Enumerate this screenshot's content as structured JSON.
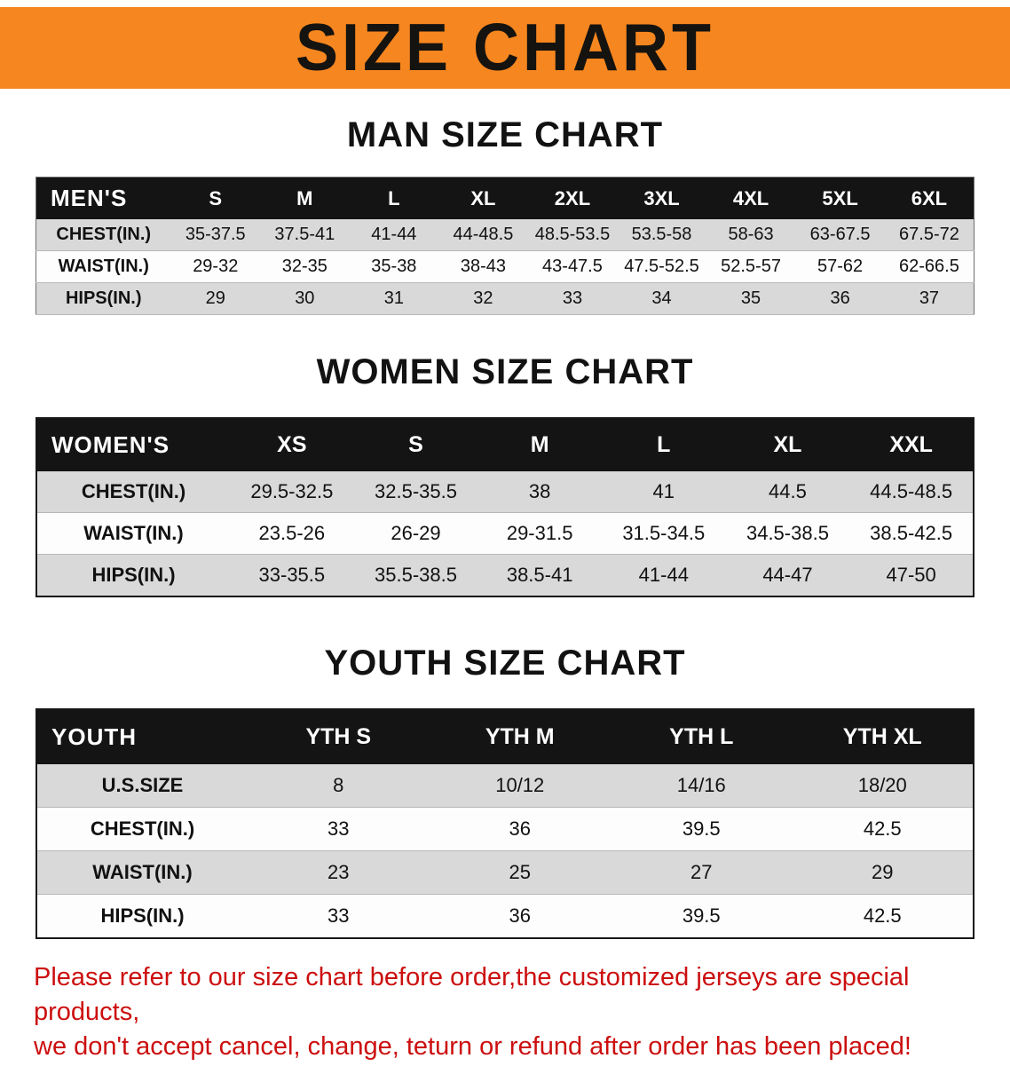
{
  "banner": {
    "title": "SIZE CHART",
    "bg_color": "#f6861f"
  },
  "sections": [
    {
      "id": "men",
      "heading": "MAN SIZE CHART",
      "table": {
        "label": "MEN'S",
        "columns": [
          "S",
          "M",
          "L",
          "XL",
          "2XL",
          "3XL",
          "4XL",
          "5XL",
          "6XL"
        ],
        "rows": [
          {
            "label": "CHEST(IN.)",
            "values": [
              "35-37.5",
              "37.5-41",
              "41-44",
              "44-48.5",
              "48.5-53.5",
              "53.5-58",
              "58-63",
              "63-67.5",
              "67.5-72"
            ]
          },
          {
            "label": "WAIST(IN.)",
            "values": [
              "29-32",
              "32-35",
              "35-38",
              "38-43",
              "43-47.5",
              "47.5-52.5",
              "52.5-57",
              "57-62",
              "62-66.5"
            ]
          },
          {
            "label": "HIPS(IN.)",
            "values": [
              "29",
              "30",
              "31",
              "32",
              "33",
              "34",
              "35",
              "36",
              "37"
            ]
          }
        ]
      }
    },
    {
      "id": "women",
      "heading": "WOMEN SIZE CHART",
      "table": {
        "label": "WOMEN'S",
        "columns": [
          "XS",
          "S",
          "M",
          "L",
          "XL",
          "XXL"
        ],
        "rows": [
          {
            "label": "CHEST(IN.)",
            "values": [
              "29.5-32.5",
              "32.5-35.5",
              "38",
              "41",
              "44.5",
              "44.5-48.5"
            ]
          },
          {
            "label": "WAIST(IN.)",
            "values": [
              "23.5-26",
              "26-29",
              "29-31.5",
              "31.5-34.5",
              "34.5-38.5",
              "38.5-42.5"
            ]
          },
          {
            "label": "HIPS(IN.)",
            "values": [
              "33-35.5",
              "35.5-38.5",
              "38.5-41",
              "41-44",
              "44-47",
              "47-50"
            ]
          }
        ]
      }
    },
    {
      "id": "youth",
      "heading": "YOUTH SIZE CHART",
      "table": {
        "label": "YOUTH",
        "columns": [
          "YTH S",
          "YTH M",
          "YTH L",
          "YTH XL"
        ],
        "rows": [
          {
            "label": "U.S.SIZE",
            "values": [
              "8",
              "10/12",
              "14/16",
              "18/20"
            ]
          },
          {
            "label": "CHEST(IN.)",
            "values": [
              "33",
              "36",
              "39.5",
              "42.5"
            ]
          },
          {
            "label": "WAIST(IN.)",
            "values": [
              "23",
              "25",
              "27",
              "29"
            ]
          },
          {
            "label": "HIPS(IN.)",
            "values": [
              "33",
              "36",
              "39.5",
              "42.5"
            ]
          }
        ]
      }
    }
  ],
  "disclaimer": {
    "line1": "Please refer to our size chart before order,the customized jerseys are special products,",
    "line2": "we don't accept cancel, change, teturn or refund after order has been placed!",
    "color": "#cc0f0f"
  }
}
